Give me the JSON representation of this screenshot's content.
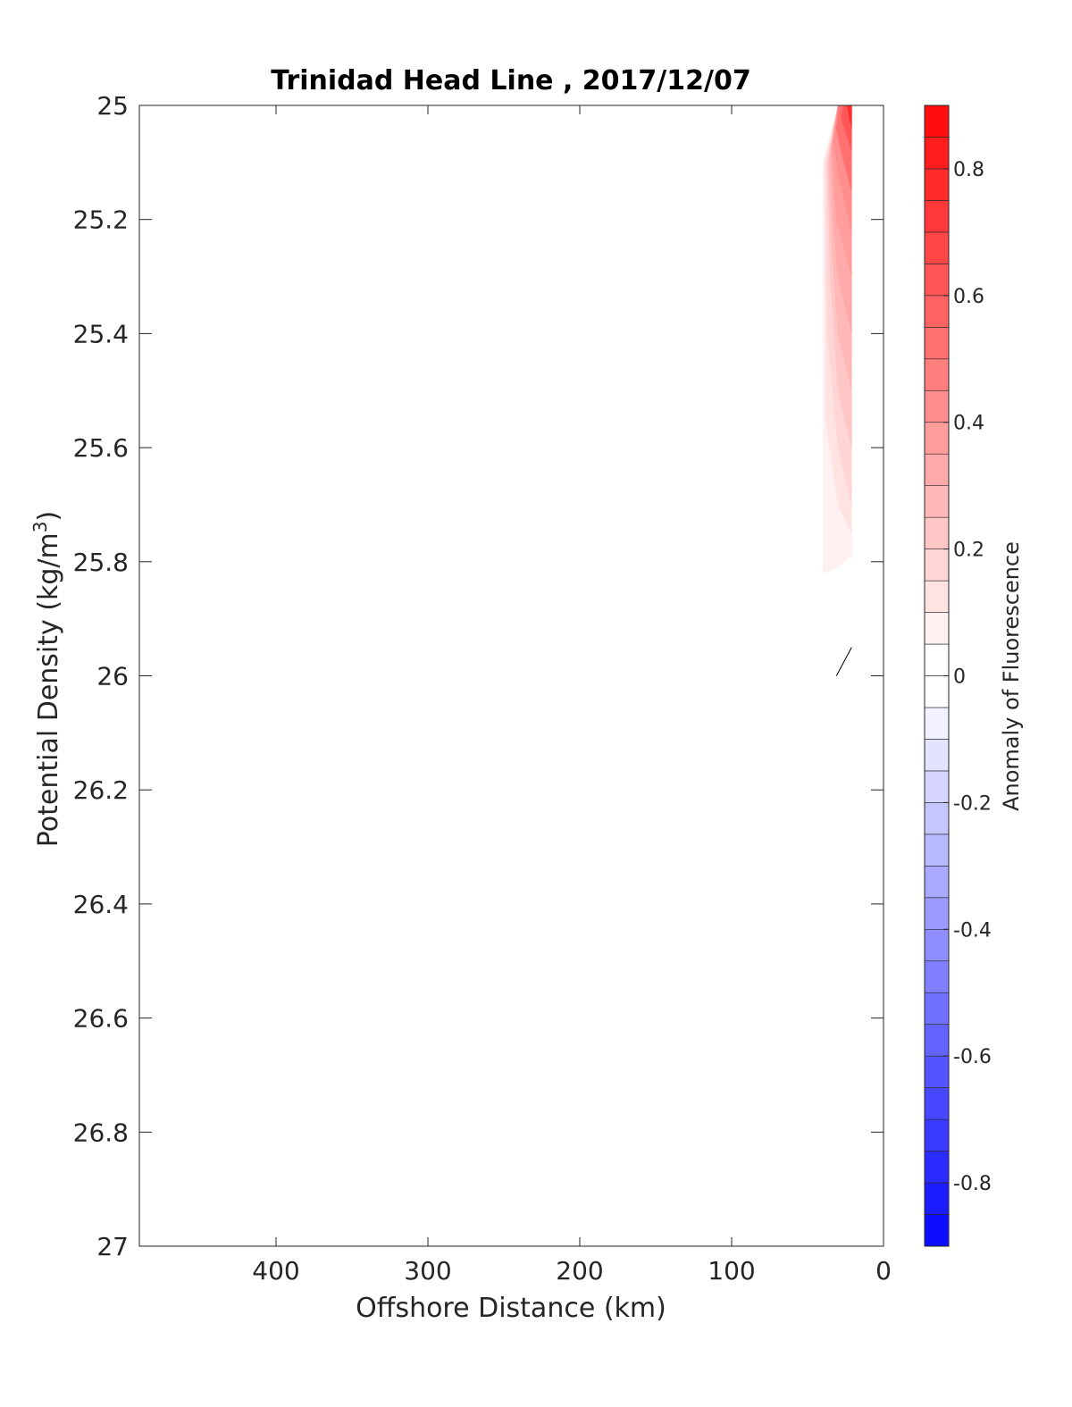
{
  "chart_data": {
    "type": "heatmap",
    "title": "Trinidad Head Line , 2017/12/07",
    "xlabel": "Offshore Distance (km)",
    "ylabel": "Potential Density (kg/m",
    "ylabel_superscript": "3",
    "ylabel_suffix": ")",
    "colorbar_label": "Anomaly of Fluorescence",
    "xlim": [
      490,
      0
    ],
    "ylim": [
      25,
      27
    ],
    "x_ticks": [
      400,
      300,
      200,
      100,
      0
    ],
    "y_ticks": [
      25,
      25.2,
      25.4,
      25.6,
      25.8,
      26,
      26.2,
      26.4,
      26.6,
      26.8,
      27
    ],
    "colorbar_ticks": [
      0.8,
      0.6,
      0.4,
      0.2,
      0,
      -0.2,
      -0.4,
      -0.6,
      -0.8
    ],
    "colorbar_tick_labels": [
      "0.8",
      "0.6",
      "0.4",
      "0.2",
      "0",
      "-0.2",
      "-0.4",
      "-0.6",
      "-0.8"
    ],
    "colorbar_range": [
      -0.9,
      0.9
    ],
    "colorbar_step": 0.05,
    "colors": {
      "positive": "#ff0000",
      "negative": "#0000ff",
      "zero": "#ffffff"
    },
    "grid": false,
    "contour_regions": [
      {
        "level": 0.05,
        "points": [
          [
            40,
            25.1
          ],
          [
            30,
            25.0
          ],
          [
            21,
            25.0
          ],
          [
            21,
            25.79
          ],
          [
            30,
            25.81
          ],
          [
            40,
            25.82
          ]
        ]
      },
      {
        "level": 0.1,
        "points": [
          [
            39,
            25.1
          ],
          [
            30,
            25.0
          ],
          [
            21,
            25.0
          ],
          [
            21,
            25.75
          ],
          [
            30,
            25.7
          ],
          [
            38,
            25.55
          ]
        ]
      },
      {
        "level": 0.15,
        "points": [
          [
            38,
            25.1
          ],
          [
            30,
            25.0
          ],
          [
            21,
            25.0
          ],
          [
            21,
            25.7
          ],
          [
            30,
            25.6
          ],
          [
            37,
            25.4
          ]
        ]
      },
      {
        "level": 0.2,
        "points": [
          [
            37,
            25.1
          ],
          [
            30,
            25.0
          ],
          [
            21,
            25.0
          ],
          [
            21,
            25.6
          ],
          [
            30,
            25.5
          ],
          [
            35,
            25.3
          ]
        ]
      },
      {
        "level": 0.25,
        "points": [
          [
            36,
            25.1
          ],
          [
            30,
            25.0
          ],
          [
            21,
            25.0
          ],
          [
            21,
            25.5
          ],
          [
            30,
            25.4
          ],
          [
            34,
            25.25
          ]
        ]
      },
      {
        "level": 0.3,
        "points": [
          [
            35,
            25.08
          ],
          [
            30,
            25.0
          ],
          [
            21,
            25.0
          ],
          [
            21,
            25.4
          ],
          [
            30,
            25.3
          ],
          [
            33,
            25.2
          ]
        ]
      },
      {
        "level": 0.35,
        "points": [
          [
            34,
            25.07
          ],
          [
            30,
            25.0
          ],
          [
            21,
            25.0
          ],
          [
            21,
            25.3
          ],
          [
            31,
            25.2
          ]
        ]
      },
      {
        "level": 0.4,
        "points": [
          [
            33,
            25.06
          ],
          [
            30,
            25.0
          ],
          [
            21,
            25.0
          ],
          [
            21,
            25.22
          ],
          [
            30,
            25.12
          ]
        ]
      },
      {
        "level": 0.5,
        "points": [
          [
            31,
            25.04
          ],
          [
            29,
            25.0
          ],
          [
            21,
            25.0
          ],
          [
            21,
            25.15
          ],
          [
            28,
            25.08
          ]
        ]
      },
      {
        "level": 0.6,
        "points": [
          [
            28,
            25.02
          ],
          [
            26,
            25.0
          ],
          [
            21,
            25.0
          ],
          [
            21,
            25.08
          ]
        ]
      },
      {
        "level": 0.75,
        "points": [
          [
            24,
            25.0
          ],
          [
            21,
            25.0
          ],
          [
            21,
            25.04
          ]
        ]
      }
    ],
    "contour_segments": [
      {
        "points": [
          [
            31,
            26.0
          ],
          [
            21,
            25.95
          ]
        ]
      }
    ]
  }
}
